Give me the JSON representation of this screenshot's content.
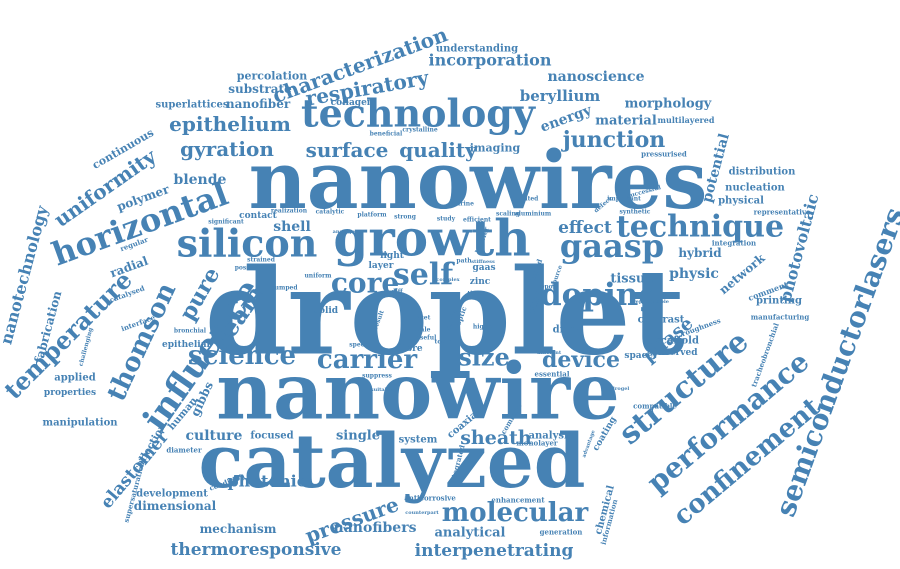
{
  "title": "",
  "color": "#4682b4",
  "words": [
    {
      "text": "droplet",
      "weight": 100
    },
    {
      "text": "nanowires",
      "weight": 92
    },
    {
      "text": "nanowire",
      "weight": 86
    },
    {
      "text": "catalyzed",
      "weight": 82
    },
    {
      "text": "growth",
      "weight": 62
    },
    {
      "text": "technology",
      "weight": 46
    },
    {
      "text": "silicon",
      "weight": 45
    },
    {
      "text": "doping",
      "weight": 40
    },
    {
      "text": "technique",
      "weight": 40
    },
    {
      "text": "horizontal",
      "weight": 36
    },
    {
      "text": "influence",
      "weight": 38
    },
    {
      "text": "science",
      "weight": 34
    },
    {
      "text": "carrier",
      "weight": 34
    },
    {
      "text": "molecular",
      "weight": 34
    },
    {
      "text": "structure",
      "weight": 35
    },
    {
      "text": "performance",
      "weight": 33
    },
    {
      "text": "confinement",
      "weight": 34
    },
    {
      "text": "semiconductorlasers",
      "weight": 32
    },
    {
      "text": "temperature",
      "weight": 31
    },
    {
      "text": "thomson",
      "weight": 32
    },
    {
      "text": "gaasp",
      "weight": 40
    },
    {
      "text": "self",
      "weight": 38
    },
    {
      "text": "core",
      "weight": 36
    },
    {
      "text": "size",
      "weight": 30
    },
    {
      "text": "device",
      "weight": 30
    },
    {
      "text": "pressure",
      "weight": 24
    },
    {
      "text": "junction",
      "weight": 28
    },
    {
      "text": "gyration",
      "weight": 26
    },
    {
      "text": "surface",
      "weight": 26
    },
    {
      "text": "quality",
      "weight": 26
    },
    {
      "text": "epithelium",
      "weight": 26
    },
    {
      "text": "respiratory",
      "weight": 26
    },
    {
      "text": "characterization",
      "weight": 24
    },
    {
      "text": "beam",
      "weight": 27
    },
    {
      "text": "pure",
      "weight": 22
    },
    {
      "text": "sheath",
      "weight": 22
    },
    {
      "text": "uniformity",
      "weight": 22
    },
    {
      "text": "nanotechnology",
      "weight": 19
    },
    {
      "text": "photovoltaic",
      "weight": 19
    },
    {
      "text": "thermoresponsive",
      "weight": 21
    },
    {
      "text": "interpenetrating",
      "weight": 21
    },
    {
      "text": "photonic",
      "weight": 19
    },
    {
      "text": "phase",
      "weight": 19
    },
    {
      "text": "elastomer",
      "weight": 19
    },
    {
      "text": "effect",
      "weight": 19
    },
    {
      "text": "incorporation",
      "weight": 18
    },
    {
      "text": "nanoscience",
      "weight": 16
    },
    {
      "text": "beryllium",
      "weight": 16
    },
    {
      "text": "nanofibers",
      "weight": 15
    },
    {
      "text": "analytical",
      "weight": 15
    },
    {
      "text": "blende",
      "weight": 14
    },
    {
      "text": "physic",
      "weight": 14
    },
    {
      "text": "energy",
      "weight": 14
    },
    {
      "text": "material",
      "weight": 14
    },
    {
      "text": "morphology",
      "weight": 14
    },
    {
      "text": "potential",
      "weight": 14
    },
    {
      "text": "culture",
      "weight": 14
    },
    {
      "text": "shell",
      "weight": 14
    },
    {
      "text": "hybrid",
      "weight": 14
    },
    {
      "text": "tissue",
      "weight": 14
    },
    {
      "text": "fabrication",
      "weight": 14
    },
    {
      "text": "radial",
      "weight": 13
    },
    {
      "text": "gibbs",
      "weight": 13
    },
    {
      "text": "network",
      "weight": 13
    },
    {
      "text": "single",
      "weight": 13
    },
    {
      "text": "dimensional",
      "weight": 12
    },
    {
      "text": "mechanism",
      "weight": 12
    },
    {
      "text": "nanofiber",
      "weight": 12
    },
    {
      "text": "polymer",
      "weight": 12
    },
    {
      "text": "substrate",
      "weight": 12
    },
    {
      "text": "percolation",
      "weight": 12
    },
    {
      "text": "superlattices",
      "weight": 11
    },
    {
      "text": "continuous",
      "weight": 11
    },
    {
      "text": "collagen",
      "weight": 10
    },
    {
      "text": "imaging",
      "weight": 11
    },
    {
      "text": "understanding",
      "weight": 11
    },
    {
      "text": "distribution",
      "weight": 11
    },
    {
      "text": "nucleation",
      "weight": 11
    },
    {
      "text": "physical",
      "weight": 11
    },
    {
      "text": "printing",
      "weight": 11
    },
    {
      "text": "contrast",
      "weight": 11
    },
    {
      "text": "scaffold",
      "weight": 11
    },
    {
      "text": "diode",
      "weight": 11
    },
    {
      "text": "analysis",
      "weight": 10
    },
    {
      "text": "focused",
      "weight": 10
    },
    {
      "text": "applied",
      "weight": 10
    },
    {
      "text": "properties",
      "weight": 10
    },
    {
      "text": "manipulation",
      "weight": 10
    },
    {
      "text": "development",
      "weight": 10
    },
    {
      "text": "collection",
      "weight": 10
    },
    {
      "text": "human",
      "weight": 10
    },
    {
      "text": "epithelial",
      "weight": 10
    },
    {
      "text": "coaxial",
      "weight": 10
    },
    {
      "text": "system",
      "weight": 10
    },
    {
      "text": "observed",
      "weight": 10
    },
    {
      "text": "spacer",
      "weight": 10
    },
    {
      "text": "contact",
      "weight": 10
    },
    {
      "text": "laser",
      "weight": 12
    },
    {
      "text": "solid",
      "weight": 10
    },
    {
      "text": "layer",
      "weight": 10
    },
    {
      "text": "light",
      "weight": 10
    },
    {
      "text": "gaas",
      "weight": 10
    },
    {
      "text": "zinc",
      "weight": 10
    },
    {
      "text": "fibre",
      "weight": 10
    },
    {
      "text": "coating",
      "weight": 10
    },
    {
      "text": "multilayered",
      "weight": 9
    },
    {
      "text": "pressurised",
      "weight": 9
    },
    {
      "text": "representative",
      "weight": 9
    },
    {
      "text": "integration",
      "weight": 9
    },
    {
      "text": "manufacturing",
      "weight": 9
    },
    {
      "text": "comment",
      "weight": 9
    },
    {
      "text": "tracheobronchial",
      "weight": 9
    },
    {
      "text": "roughness",
      "weight": 9
    },
    {
      "text": "compatible",
      "weight": 9
    },
    {
      "text": "chemical",
      "weight": 11
    },
    {
      "text": "information",
      "weight": 9
    },
    {
      "text": "generation",
      "weight": 9
    },
    {
      "text": "enhancement",
      "weight": 9
    },
    {
      "text": "anticorrosive",
      "weight": 9
    },
    {
      "text": "integrated",
      "weight": 9
    },
    {
      "text": "essential",
      "weight": 9
    },
    {
      "text": "common",
      "weight": 9
    },
    {
      "text": "monolayer",
      "weight": 9
    },
    {
      "text": "supersaturation",
      "weight": 9
    },
    {
      "text": "diameter",
      "weight": 9
    },
    {
      "text": "condition",
      "weight": 9
    },
    {
      "text": "regular",
      "weight": 9
    },
    {
      "text": "catalysed",
      "weight": 9
    },
    {
      "text": "interface",
      "weight": 9
    },
    {
      "text": "challenging",
      "weight": 8
    },
    {
      "text": "bronchial",
      "weight": 8
    },
    {
      "text": "pumped",
      "weight": 8
    },
    {
      "text": "strained",
      "weight": 8
    },
    {
      "text": "possibilities",
      "weight": 8
    },
    {
      "text": "significant",
      "weight": 8
    },
    {
      "text": "realization",
      "weight": 8
    },
    {
      "text": "catalytic",
      "weight": 8
    },
    {
      "text": "platform",
      "weight": 8
    },
    {
      "text": "strong",
      "weight": 8
    },
    {
      "text": "study",
      "weight": 8
    },
    {
      "text": "efficient",
      "weight": 8
    },
    {
      "text": "printed",
      "weight": 8
    },
    {
      "text": "scaling",
      "weight": 8
    },
    {
      "text": "aluminium",
      "weight": 8
    },
    {
      "text": "defect",
      "weight": 8
    },
    {
      "text": "synthetic",
      "weight": 8
    },
    {
      "text": "important",
      "weight": 8
    },
    {
      "text": "successful",
      "weight": 8
    },
    {
      "text": "beneficial",
      "weight": 8
    },
    {
      "text": "crystalline",
      "weight": 8
    },
    {
      "text": "marine",
      "weight": 8
    },
    {
      "text": "path",
      "weight": 8
    },
    {
      "text": "tip",
      "weight": 8
    },
    {
      "text": "uniform",
      "weight": 8
    },
    {
      "text": "speed",
      "weight": 8
    },
    {
      "text": "result",
      "weight": 8
    },
    {
      "text": "scale",
      "weight": 8
    },
    {
      "text": "facet",
      "weight": 8
    },
    {
      "text": "useful",
      "weight": 8
    },
    {
      "text": "suppress",
      "weight": 8
    },
    {
      "text": "higher",
      "weight": 8
    },
    {
      "text": "barrier",
      "weight": 8
    },
    {
      "text": "optic",
      "weight": 8
    },
    {
      "text": "mode",
      "weight": 8
    },
    {
      "text": "topic",
      "weight": 8
    },
    {
      "text": "liquid",
      "weight": 8
    },
    {
      "text": "source",
      "weight": 8
    },
    {
      "text": "report",
      "weight": 8
    },
    {
      "text": "diff",
      "weight": 8
    },
    {
      "text": "different",
      "weight": 7
    },
    {
      "text": "advance",
      "weight": 7
    },
    {
      "text": "hydrogel",
      "weight": 7
    },
    {
      "text": "reproducible",
      "weight": 7
    },
    {
      "text": "counterpart",
      "weight": 7
    },
    {
      "text": "advantage",
      "weight": 7
    },
    {
      "text": "suitable",
      "weight": 7
    },
    {
      "text": "analogous",
      "weight": 7
    },
    {
      "text": "complex",
      "weight": 7
    },
    {
      "text": "stiffness",
      "weight": 7
    }
  ]
}
